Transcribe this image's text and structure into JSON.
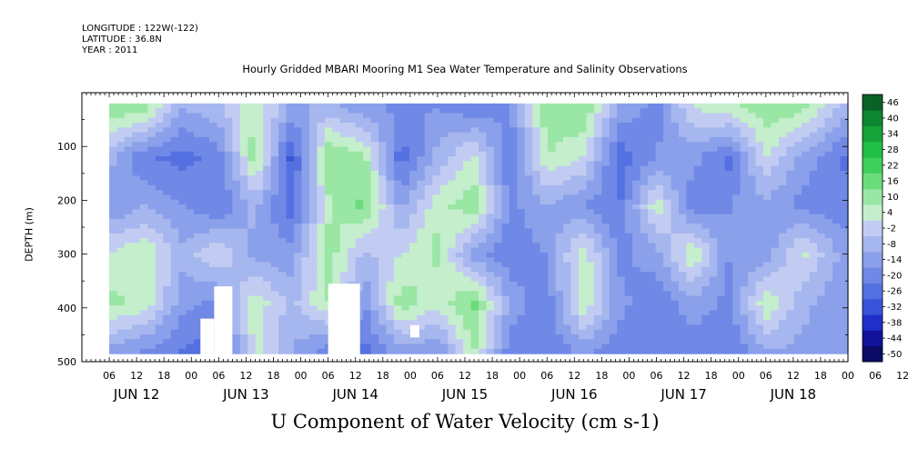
{
  "header": {
    "longitude": "LONGITUDE : 122W(-122)",
    "latitude": "LATITUDE : 36.8N",
    "year": "YEAR : 2011"
  },
  "chart_data": {
    "type": "heatmap",
    "title": "Hourly Gridded MBARI Mooring M1 Sea Water Temperature and Salinity Observations",
    "xlabel": "U Component of Water Velocity (cm s-1)",
    "ylabel": "DEPTH (m)",
    "x_range_hours": [
      0,
      168
    ],
    "ylim": [
      500,
      0
    ],
    "data_depth_range": [
      20,
      485
    ],
    "data_hour_range": [
      6,
      168
    ],
    "y_ticks": [
      100,
      200,
      300,
      400,
      500
    ],
    "x_hour_tick_labels": [
      "06",
      "12",
      "18",
      "00",
      "06",
      "12",
      "18",
      "00",
      "06",
      "12",
      "18",
      "00",
      "06",
      "12",
      "18",
      "00",
      "06",
      "12",
      "18",
      "00",
      "06",
      "12",
      "18",
      "00",
      "06",
      "12",
      "18",
      "00",
      "06",
      "12",
      "18",
      "00"
    ],
    "x_day_labels": [
      "JUN 12",
      "JUN 13",
      "JUN 14",
      "JUN 15",
      "JUN 16",
      "JUN 17",
      "JUN 18"
    ],
    "colorbar": {
      "levels": [
        -50,
        -44,
        -38,
        -32,
        -26,
        -20,
        -14,
        -8,
        -2,
        4,
        10,
        16,
        22,
        28,
        34,
        40,
        46
      ],
      "tick_labels": [
        "46",
        "40",
        "34",
        "28",
        "22",
        "16",
        "10",
        "4",
        "-2",
        "-8",
        "-14",
        "-20",
        "-26",
        "-32",
        "-38",
        "-44",
        "-50"
      ],
      "colors": [
        "#0b0b66",
        "#12129a",
        "#1f2fc8",
        "#3a52d8",
        "#5570e0",
        "#7088e6",
        "#8aa0ea",
        "#a6b6ee",
        "#c2ccf2",
        "#c4eecc",
        "#9ae6a4",
        "#6adc7c",
        "#3fd05c",
        "#22bf46",
        "#16a33a",
        "#0e8530",
        "#0a6226"
      ]
    },
    "velocity_bands": [
      {
        "hour": 6,
        "values": [
          15,
          -5,
          -15,
          5,
          12,
          -10
        ]
      },
      {
        "hour": 14,
        "values": [
          12,
          -20,
          -8,
          10,
          8,
          -15
        ]
      },
      {
        "hour": 22,
        "values": [
          -8,
          -22,
          -14,
          -6,
          -12,
          -20
        ]
      },
      {
        "hour": 30,
        "values": [
          -4,
          -18,
          -20,
          4,
          -16,
          -25
        ]
      },
      {
        "hour": 38,
        "values": [
          10,
          14,
          -6,
          -10,
          8,
          6
        ]
      },
      {
        "hour": 46,
        "values": [
          -10,
          -28,
          -24,
          -12,
          -4,
          -8
        ]
      },
      {
        "hour": 54,
        "values": [
          -5,
          16,
          8,
          14,
          10,
          -18
        ]
      },
      {
        "hour": 62,
        "values": [
          -12,
          12,
          18,
          -4,
          -14,
          -22
        ]
      },
      {
        "hour": 70,
        "values": [
          -15,
          -24,
          -10,
          4,
          14,
          -10
        ]
      },
      {
        "hour": 78,
        "values": [
          -14,
          -6,
          8,
          12,
          6,
          -14
        ]
      },
      {
        "hour": 86,
        "values": [
          -18,
          6,
          14,
          -12,
          18,
          10
        ]
      },
      {
        "hour": 94,
        "values": [
          -14,
          -20,
          -16,
          -18,
          -10,
          -18
        ]
      },
      {
        "hour": 102,
        "values": [
          14,
          10,
          -8,
          -14,
          -18,
          -20
        ]
      },
      {
        "hour": 110,
        "values": [
          16,
          4,
          -14,
          8,
          10,
          -12
        ]
      },
      {
        "hour": 118,
        "values": [
          -10,
          -24,
          -20,
          -16,
          -12,
          -18
        ]
      },
      {
        "hour": 126,
        "values": [
          -16,
          -14,
          8,
          -10,
          -20,
          -16
        ]
      },
      {
        "hour": 134,
        "values": [
          4,
          -12,
          -18,
          10,
          -10,
          -18
        ]
      },
      {
        "hour": 142,
        "values": [
          8,
          -22,
          -14,
          -14,
          -16,
          -20
        ]
      },
      {
        "hour": 150,
        "values": [
          14,
          4,
          -10,
          -12,
          10,
          -8
        ]
      },
      {
        "hour": 158,
        "values": [
          12,
          -10,
          -16,
          6,
          -6,
          -10
        ]
      },
      {
        "hour": 168,
        "values": [
          -6,
          -22,
          -18,
          -12,
          -14,
          -8
        ]
      }
    ],
    "band_depths": [
      30,
      120,
      210,
      300,
      390,
      480
    ],
    "missing_data_regions": [
      {
        "hours": [
          26,
          29
        ],
        "depths": [
          420,
          490
        ]
      },
      {
        "hours": [
          29,
          33
        ],
        "depths": [
          360,
          490
        ]
      },
      {
        "hours": [
          54,
          61
        ],
        "depths": [
          355,
          490
        ]
      },
      {
        "hours": [
          72,
          74
        ],
        "depths": [
          432,
          455
        ]
      }
    ]
  }
}
